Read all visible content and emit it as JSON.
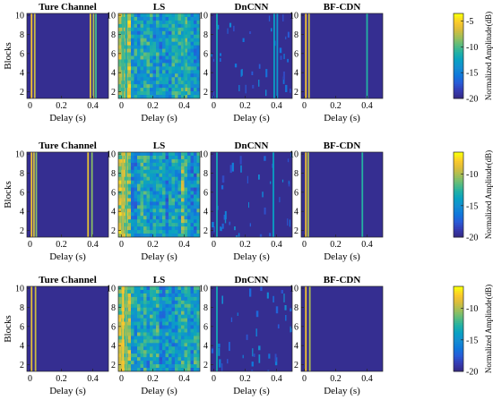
{
  "figure": {
    "rows": [
      {
        "panels": [
          {
            "title": "Ture Channel",
            "kind": "true",
            "lines": [
              {
                "d": 0.01,
                "i": 0.9
              },
              {
                "d": 0.03,
                "i": 0.8
              },
              {
                "d": 0.385,
                "i": 0.85
              },
              {
                "d": 0.405,
                "i": 0.75
              },
              {
                "d": 0.42,
                "i": 0.6
              }
            ]
          },
          {
            "title": "LS",
            "kind": "ls",
            "lines": [
              {
                "d": 0.01,
                "i": 0.6
              },
              {
                "d": 0.03,
                "i": 0.5
              },
              {
                "d": 0.4,
                "i": 0.5
              }
            ]
          },
          {
            "title": "DnCNN",
            "kind": "dncnn",
            "lines": [
              {
                "d": 0.02,
                "i": 0.5
              },
              {
                "d": 0.385,
                "i": 0.45
              },
              {
                "d": 0.405,
                "i": 0.4
              }
            ]
          },
          {
            "title": "BF-CDN",
            "kind": "bfcdn",
            "lines": [
              {
                "d": 0.01,
                "i": 0.9
              },
              {
                "d": 0.03,
                "i": 0.8
              },
              {
                "d": 0.4,
                "i": 0.55
              }
            ]
          }
        ],
        "colorbar": {
          "label": "Normalized Amplitude(dB)",
          "ticks": [
            -5,
            -10,
            -15,
            -20
          ],
          "min": -20,
          "max": -3.5
        }
      },
      {
        "panels": [
          {
            "title": "Ture Channel",
            "kind": "true",
            "lines": [
              {
                "d": 0.01,
                "i": 0.9
              },
              {
                "d": 0.025,
                "i": 0.8
              },
              {
                "d": 0.04,
                "i": 0.7
              },
              {
                "d": 0.37,
                "i": 0.85
              },
              {
                "d": 0.395,
                "i": 0.7
              }
            ]
          },
          {
            "title": "LS",
            "kind": "ls",
            "lines": [
              {
                "d": 0.01,
                "i": 0.8
              },
              {
                "d": 0.03,
                "i": 0.6
              }
            ]
          },
          {
            "title": "DnCNN",
            "kind": "dncnn",
            "lines": [
              {
                "d": 0.02,
                "i": 0.5
              },
              {
                "d": 0.38,
                "i": 0.45
              }
            ]
          },
          {
            "title": "BF-CDN",
            "kind": "bfcdn",
            "lines": [
              {
                "d": 0.01,
                "i": 0.9
              },
              {
                "d": 0.025,
                "i": 0.75
              },
              {
                "d": 0.37,
                "i": 0.55
              }
            ]
          }
        ],
        "colorbar": {
          "label": "Normalized Amplitude(dB)",
          "ticks": [
            -10,
            -15,
            -20
          ],
          "min": -20,
          "max": -6.5
        }
      },
      {
        "panels": [
          {
            "title": "Ture Channel",
            "kind": "true",
            "lines": [
              {
                "d": 0.01,
                "i": 0.85
              },
              {
                "d": 0.035,
                "i": 0.8
              }
            ]
          },
          {
            "title": "LS",
            "kind": "ls",
            "lines": [
              {
                "d": 0.01,
                "i": 0.9
              },
              {
                "d": 0.03,
                "i": 0.7
              }
            ]
          },
          {
            "title": "DnCNN",
            "kind": "dncnn",
            "lines": [
              {
                "d": 0.02,
                "i": 0.5
              }
            ]
          },
          {
            "title": "BF-CDN",
            "kind": "bfcdn",
            "lines": [
              {
                "d": 0.01,
                "i": 0.9
              },
              {
                "d": 0.035,
                "i": 0.75
              }
            ]
          }
        ],
        "colorbar": {
          "label": "Normalized Amplitude(dB)",
          "ticks": [
            -10,
            -15,
            -20
          ],
          "min": -20,
          "max": -6.5
        }
      }
    ],
    "xlabel": "Delay (s)",
    "ylabel": "Blocks",
    "xticks": [
      0,
      0.2,
      0.4
    ],
    "yticks": [
      2,
      4,
      6,
      8,
      10
    ],
    "xlim": [
      -0.02,
      0.5
    ],
    "ylim": [
      1.3,
      10.2
    ]
  },
  "chart_data": {
    "type": "heatmap",
    "description_panels": [
      "Ture Channel",
      "LS",
      "DnCNN",
      "BF-CDN"
    ],
    "xlabel": "Delay (s)",
    "ylabel": "Blocks",
    "xlim": [
      -0.02,
      0.5
    ],
    "ylim": [
      1.3,
      10.2
    ],
    "colorbar_label": "Normalized Amplitude(dB)",
    "colorbar_ranges": [
      [
        -20,
        -3.5
      ],
      [
        -20,
        -6.5
      ],
      [
        -20,
        -6.5
      ]
    ],
    "colormap": "parula"
  }
}
